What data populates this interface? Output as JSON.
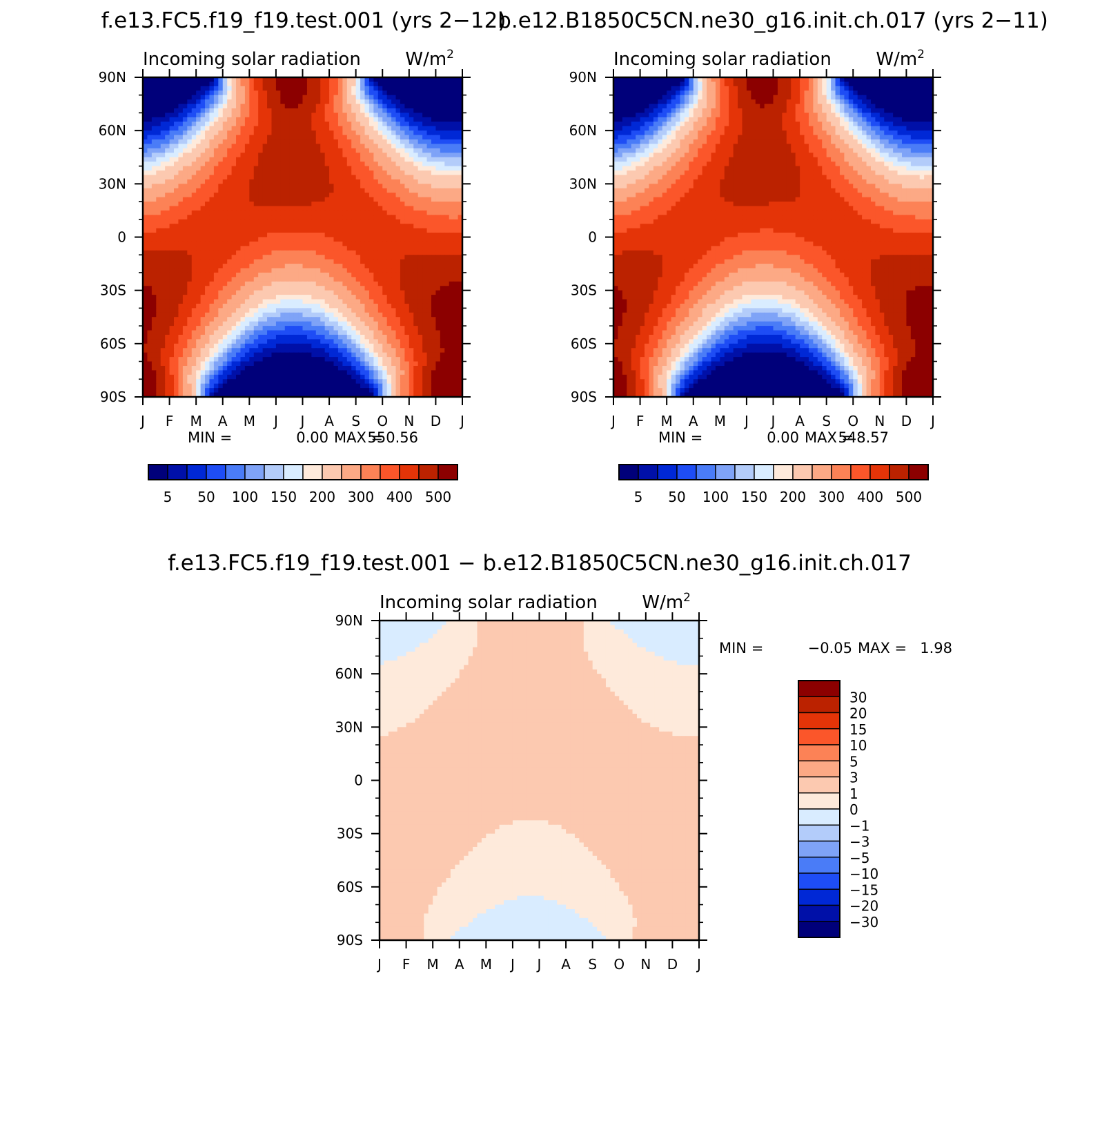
{
  "palette": {
    "cool": [
      "#00007a",
      "#0010a8",
      "#0028d6",
      "#1e4df5",
      "#4a7cf7",
      "#7fa3f7",
      "#b3ccfa",
      "#d9ecff"
    ],
    "warm": [
      "#feeadb",
      "#fcc9b0",
      "#fca985",
      "#fc8256",
      "#fb562a",
      "#e43408",
      "#bb2200",
      "#8c0000"
    ]
  },
  "chart_data": [
    {
      "type": "heatmap",
      "id": "panel_a",
      "title": "f.e13.FC5.f19_f19.test.001 (yrs 2-12)",
      "subtitle": "Incoming solar radiation",
      "units": "W/m",
      "units_sup": "2",
      "xlabel": "",
      "ylabel": "",
      "x": [
        "J",
        "F",
        "M",
        "A",
        "M",
        "J",
        "J",
        "A",
        "S",
        "O",
        "N",
        "D",
        "J"
      ],
      "y_ticks": [
        "90N",
        "60N",
        "30N",
        "0",
        "30S",
        "60S",
        "90S"
      ],
      "ylim": [
        -90,
        90
      ],
      "stats": {
        "min_label": "MIN =",
        "min": "0.00",
        "max_label": "MAX =",
        "max": "550.56"
      },
      "colorbar": {
        "levels": [
          5,
          25,
          50,
          75,
          100,
          125,
          150,
          175,
          200,
          250,
          300,
          350,
          400,
          450,
          500
        ],
        "labels": [
          "5",
          "50",
          "100",
          "150",
          "200",
          "300",
          "400",
          "500"
        ]
      },
      "field": {
        "model": "insolation",
        "scale": 1.0
      }
    },
    {
      "type": "heatmap",
      "id": "panel_b",
      "title": "b.e12.B1850C5CN.ne30_g16.init.ch.017 (yrs 2-11)",
      "subtitle": "Incoming solar radiation",
      "units": "W/m",
      "units_sup": "2",
      "xlabel": "",
      "ylabel": "",
      "x": [
        "J",
        "F",
        "M",
        "A",
        "M",
        "J",
        "J",
        "A",
        "S",
        "O",
        "N",
        "D",
        "J"
      ],
      "y_ticks": [
        "90N",
        "60N",
        "30N",
        "0",
        "30S",
        "60S",
        "90S"
      ],
      "ylim": [
        -90,
        90
      ],
      "stats": {
        "min_label": "MIN =",
        "min": "0.00",
        "max_label": "MAX =",
        "max": "548.57"
      },
      "colorbar": {
        "levels": [
          5,
          25,
          50,
          75,
          100,
          125,
          150,
          175,
          200,
          250,
          300,
          350,
          400,
          450,
          500
        ],
        "labels": [
          "5",
          "50",
          "100",
          "150",
          "200",
          "300",
          "400",
          "500"
        ]
      },
      "field": {
        "model": "insolation",
        "scale": 0.9964
      }
    },
    {
      "type": "heatmap",
      "id": "panel_diff",
      "title": "f.e13.FC5.f19_f19.test.001 - b.e12.B1850C5CN.ne30_g16.init.ch.017",
      "subtitle": "Incoming solar radiation",
      "units": "W/m",
      "units_sup": "2",
      "xlabel": "",
      "ylabel": "",
      "x": [
        "J",
        "F",
        "M",
        "A",
        "M",
        "J",
        "J",
        "A",
        "S",
        "O",
        "N",
        "D",
        "J"
      ],
      "y_ticks": [
        "90N",
        "60N",
        "30N",
        "0",
        "30S",
        "60S",
        "90S"
      ],
      "ylim": [
        -90,
        90
      ],
      "stats": {
        "min_label": "MIN =",
        "min": "-0.05",
        "max_label": "MAX =",
        "max": "1.98"
      },
      "colorbar": {
        "levels": [
          -30,
          -20,
          -15,
          -10,
          -5,
          -3,
          -1,
          0,
          1,
          3,
          5,
          10,
          15,
          20,
          30
        ],
        "labels": [
          "-30",
          "-20",
          "-15",
          "-10",
          "-5",
          "-3",
          "-1",
          "0",
          "1",
          "3",
          "5",
          "10",
          "15",
          "20",
          "30"
        ]
      },
      "field": {
        "model": "difference",
        "scale": 1.0
      }
    }
  ]
}
